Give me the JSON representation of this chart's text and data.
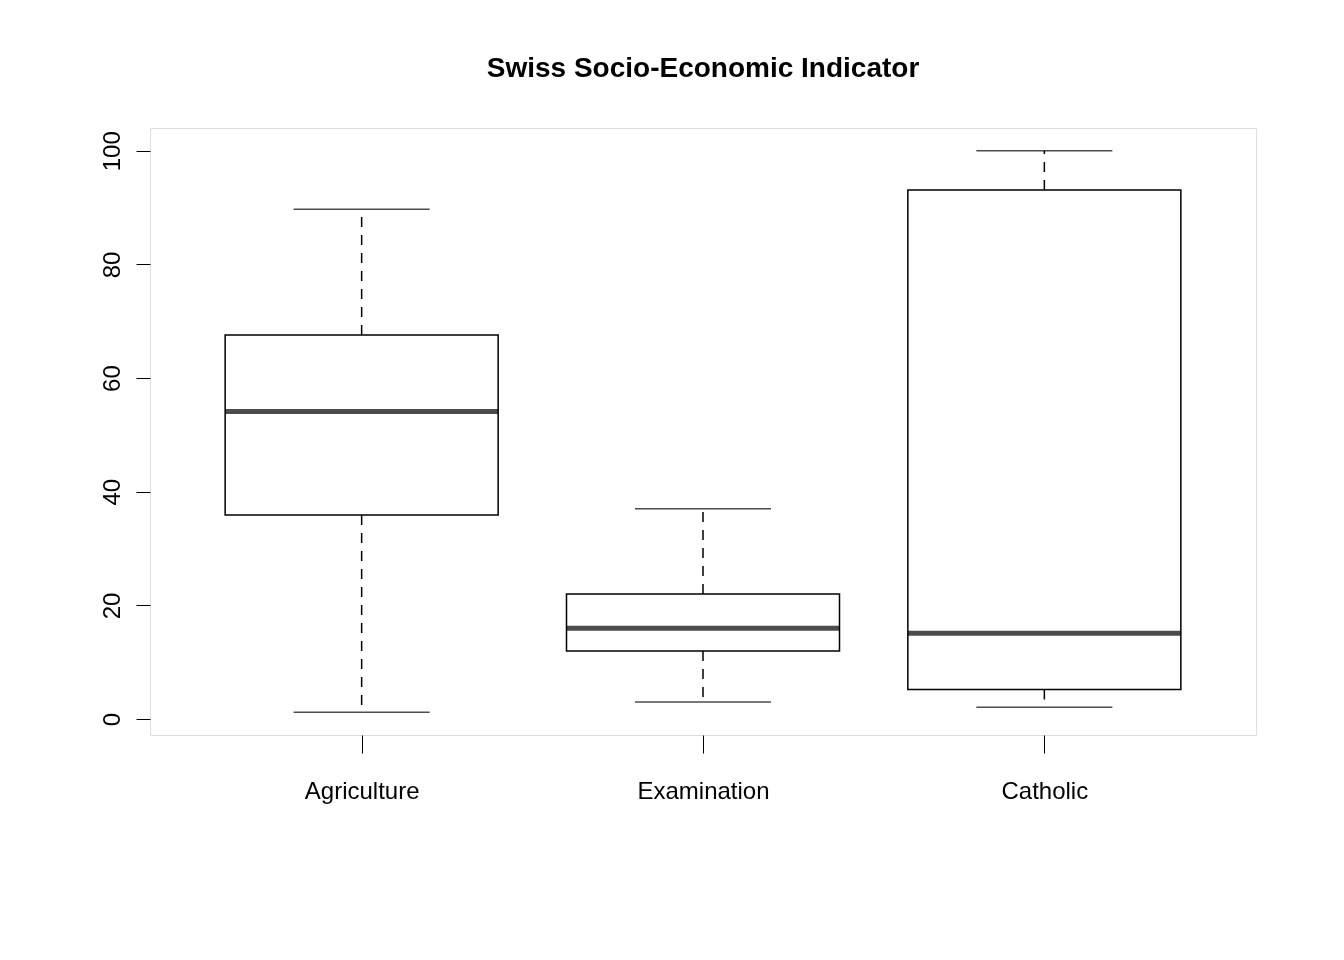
{
  "chart_data": {
    "type": "box",
    "title": "Swiss Socio-Economic Indicator",
    "categories": [
      "Agriculture",
      "Examination",
      "Catholic"
    ],
    "boxes": [
      {
        "low": 1.2,
        "q1": 35.9,
        "median": 54.1,
        "q3": 67.6,
        "high": 89.7
      },
      {
        "low": 3,
        "q1": 12,
        "median": 16,
        "q3": 22,
        "high": 37
      },
      {
        "low": 2.1,
        "q1": 5.2,
        "median": 15.1,
        "q3": 93.1,
        "high": 100
      }
    ],
    "ylim": [
      -2.8,
      104
    ],
    "yticks": [
      0,
      20,
      40,
      60,
      80,
      100
    ],
    "grid": false
  }
}
